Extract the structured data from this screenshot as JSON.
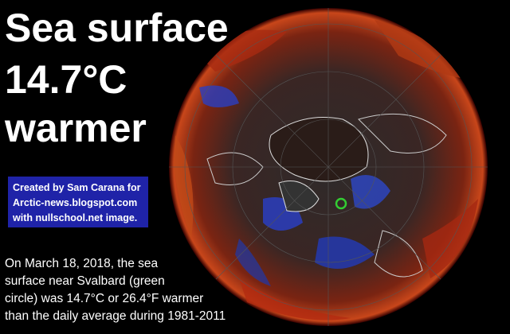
{
  "title": {
    "lines": [
      "Sea surface",
      "14.7°C",
      "warmer"
    ]
  },
  "credit": {
    "lines": [
      "Created by Sam Carana for",
      "Arctic-news.blogspot.com",
      "with nullschool.net image."
    ]
  },
  "caption": {
    "lines": [
      "On March 18, 2018, the sea",
      "surface near Svalbard (green",
      "circle) was 14.7°C or 26.4°F warmer",
      "than the daily average during 1981-2011"
    ]
  }
}
